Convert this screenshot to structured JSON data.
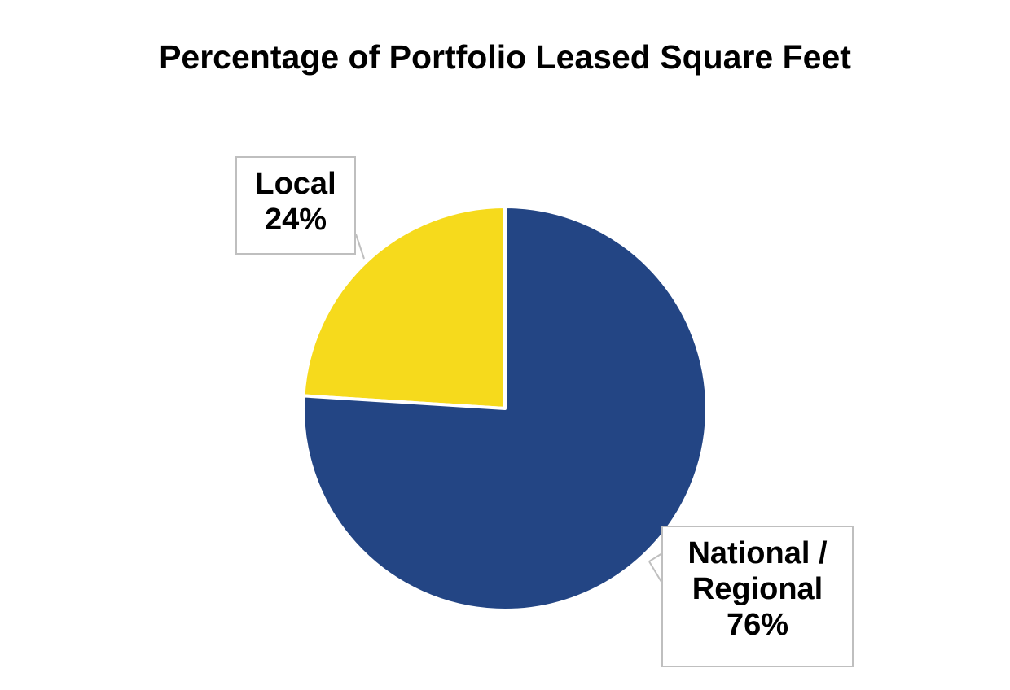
{
  "chart_data": {
    "type": "pie",
    "title": "Percentage of Portfolio Leased Square Feet",
    "categories": [
      "National / Regional",
      "Local"
    ],
    "values": [
      76,
      24
    ],
    "value_labels": [
      "76%",
      "24%"
    ],
    "colors": [
      "#234584",
      "#f6da1c"
    ]
  }
}
